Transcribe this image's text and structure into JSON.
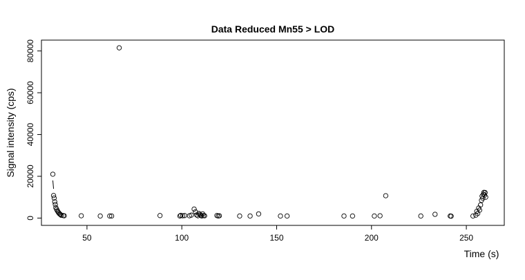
{
  "chart_data": {
    "type": "scatter",
    "title": "Data Reduced Mn55 > LOD",
    "xlabel": "Time (s)",
    "ylabel": "Signal intensity (cps)",
    "xlim": [
      26,
      270
    ],
    "ylim": [
      -3500,
      85200
    ],
    "xticks": [
      50,
      100,
      150,
      200,
      250
    ],
    "yticks": [
      0,
      20000,
      40000,
      60000,
      80000
    ],
    "grid": false,
    "legend": "none",
    "marker": "open-circle",
    "points": [
      [
        32.0,
        21000
      ],
      [
        32.4,
        10800
      ],
      [
        32.7,
        9600
      ],
      [
        33.0,
        7800
      ],
      [
        33.3,
        6500
      ],
      [
        33.6,
        5000
      ],
      [
        34.0,
        4200
      ],
      [
        34.4,
        3500
      ],
      [
        34.8,
        2900
      ],
      [
        35.2,
        2400
      ],
      [
        35.6,
        2000
      ],
      [
        36.0,
        1700
      ],
      [
        36.5,
        1300
      ],
      [
        37.5,
        1200
      ],
      [
        38.0,
        1100
      ],
      [
        47,
        1100
      ],
      [
        57,
        1000
      ],
      [
        62,
        1000
      ],
      [
        63,
        1000
      ],
      [
        67,
        81500
      ],
      [
        88.5,
        1200
      ],
      [
        99,
        1000
      ],
      [
        99.5,
        1300
      ],
      [
        100.5,
        1100
      ],
      [
        101.5,
        1200
      ],
      [
        104,
        1100
      ],
      [
        105,
        1400
      ],
      [
        106.5,
        4300
      ],
      [
        107.2,
        3000
      ],
      [
        107.8,
        1500
      ],
      [
        108.5,
        1100
      ],
      [
        109,
        2200
      ],
      [
        109.5,
        1700
      ],
      [
        110,
        1300
      ],
      [
        110.5,
        1000
      ],
      [
        111,
        2000
      ],
      [
        111.5,
        1200
      ],
      [
        112,
        1100
      ],
      [
        118.5,
        1200
      ],
      [
        119.2,
        1000
      ],
      [
        119.8,
        1100
      ],
      [
        130.5,
        1000
      ],
      [
        136,
        1000
      ],
      [
        140.5,
        2000
      ],
      [
        152,
        1000
      ],
      [
        155.5,
        1000
      ],
      [
        185.5,
        1000
      ],
      [
        190,
        1000
      ],
      [
        201.5,
        1000
      ],
      [
        204.5,
        1100
      ],
      [
        207.5,
        10700
      ],
      [
        226,
        1000
      ],
      [
        233.5,
        1800
      ],
      [
        241.5,
        1000
      ],
      [
        242,
        900
      ],
      [
        253.5,
        1000
      ],
      [
        255,
        1400
      ],
      [
        255.5,
        3200
      ],
      [
        256,
        2200
      ],
      [
        256.5,
        4800
      ],
      [
        257,
        3800
      ],
      [
        257.5,
        6300
      ],
      [
        258,
        8500
      ],
      [
        258.3,
        10500
      ],
      [
        258.7,
        9500
      ],
      [
        259,
        11400
      ],
      [
        259.3,
        12300
      ],
      [
        259.6,
        11000
      ],
      [
        259.9,
        12200
      ],
      [
        260.2,
        10000
      ]
    ],
    "connector": {
      "x": [
        32.0,
        32.4
      ],
      "y": [
        18000,
        14000
      ]
    }
  }
}
